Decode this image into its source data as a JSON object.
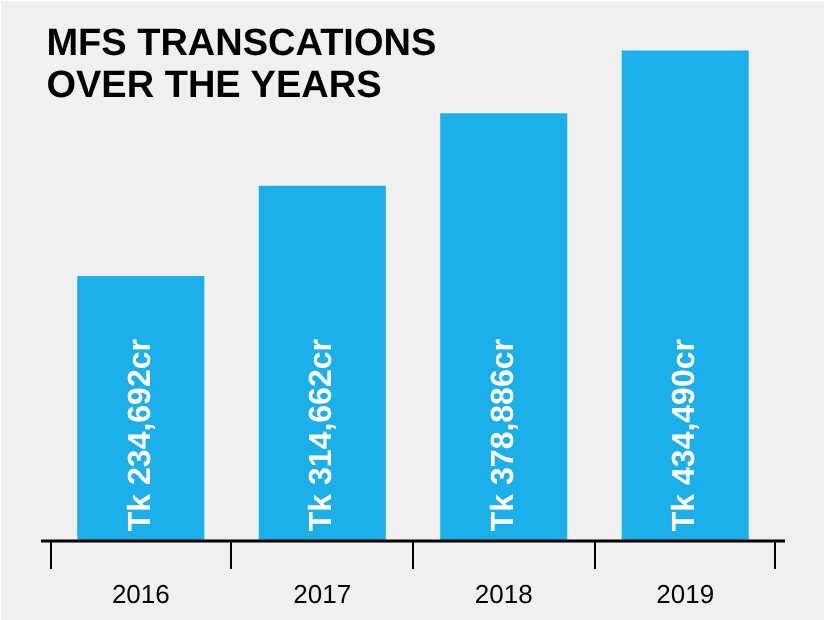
{
  "chart_data": {
    "type": "bar",
    "title": "MFS TRANSCATIONS\nOVER THE YEARS",
    "categories": [
      "2016",
      "2017",
      "2018",
      "2019"
    ],
    "values": [
      234692,
      314662,
      378886,
      434490
    ],
    "value_labels": [
      "Tk 234,692cr",
      "Tk 314,662cr",
      "Tk 378,886cr",
      "Tk 434,490cr"
    ],
    "color": "#1cb0ea",
    "grid": false
  }
}
